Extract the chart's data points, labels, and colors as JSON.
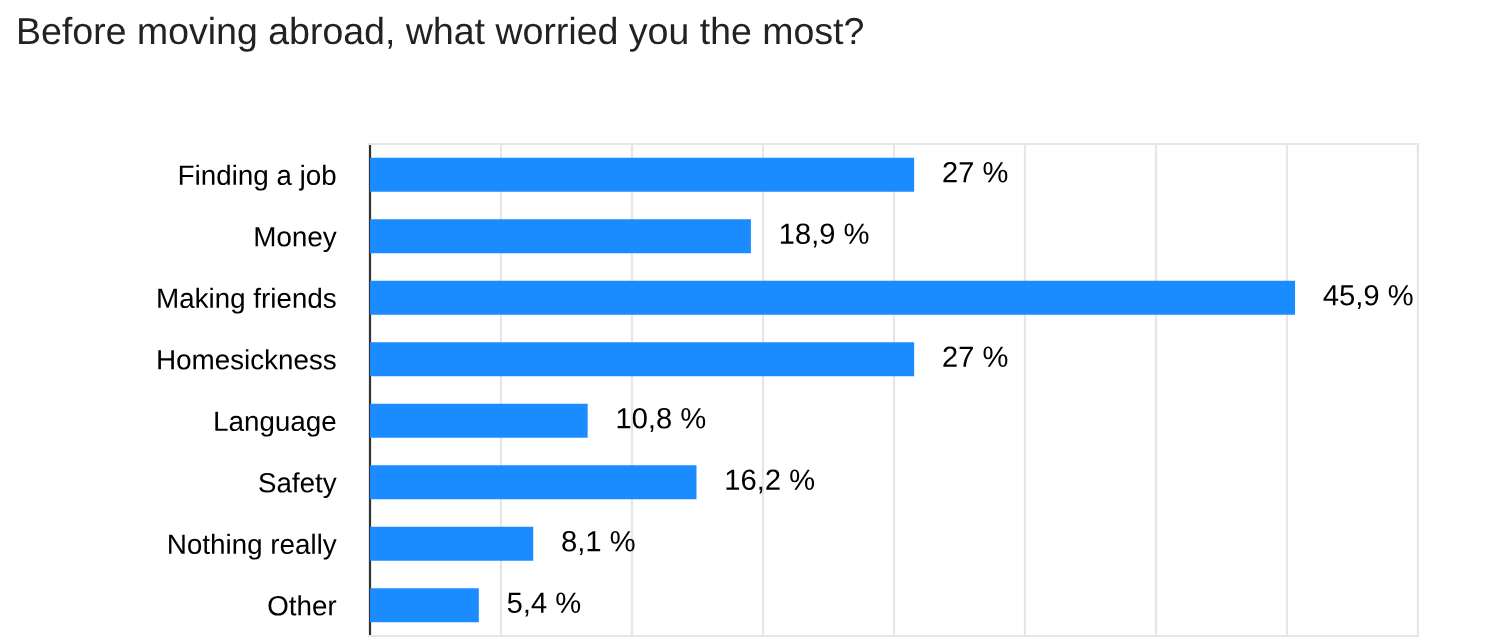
{
  "chart_data": {
    "type": "bar",
    "orientation": "horizontal",
    "title": "Before moving abroad, what worried you the most?",
    "categories": [
      "Finding a job",
      "Money",
      "Making friends",
      "Homesickness",
      "Language",
      "Safety",
      "Nothing really",
      "Other"
    ],
    "values": [
      27,
      18.9,
      45.9,
      27,
      10.8,
      16.2,
      8.1,
      5.4
    ],
    "value_labels": [
      "27 %",
      "18,9 %",
      "45,9 %",
      "27 %",
      "10,8 %",
      "16,2 %",
      "8,1 %",
      "5,4 %"
    ],
    "color": "#1a8cff",
    "xlim": [
      0,
      52
    ],
    "xticks": [
      {
        "value": 0,
        "label": null
      },
      {
        "value": 6.5,
        "label": null
      },
      {
        "value": 13,
        "label": null
      },
      {
        "value": 19.5,
        "label": null
      },
      {
        "value": 26,
        "label": null
      },
      {
        "value": 32.5,
        "label": null
      },
      {
        "value": 39,
        "label": null
      },
      {
        "value": 45.5,
        "label": null
      },
      {
        "value": 52,
        "label": null
      }
    ],
    "grid": "x",
    "tick_labels": "y"
  }
}
